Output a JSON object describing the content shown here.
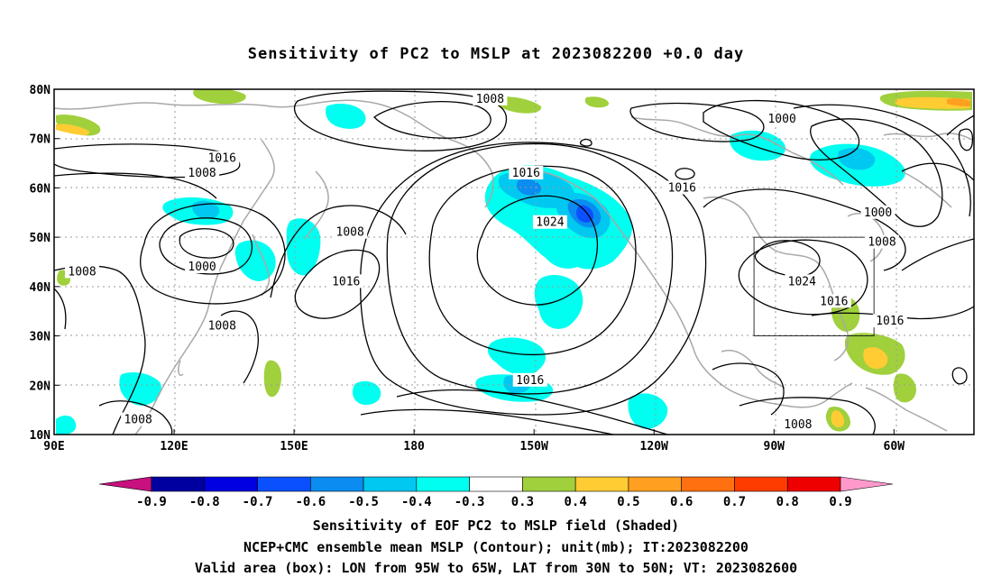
{
  "title": "Sensitivity of PC2 to MSLP at 2023082200 +0.0 day",
  "lat_labels": [
    "80N",
    "70N",
    "60N",
    "50N",
    "40N",
    "30N",
    "20N",
    "10N"
  ],
  "lon_labels": [
    "90E",
    "120E",
    "150E",
    "180",
    "150W",
    "120W",
    "90W",
    "60W"
  ],
  "contour_labels": [
    {
      "text": "1008",
      "lon": -161,
      "lat": 78
    },
    {
      "text": "1016",
      "lon": 132,
      "lat": 66
    },
    {
      "text": "1008",
      "lon": 127,
      "lat": 63
    },
    {
      "text": "1016",
      "lon": -152,
      "lat": 63
    },
    {
      "text": "1024",
      "lon": -146,
      "lat": 53
    },
    {
      "text": "1016",
      "lon": -113,
      "lat": 60
    },
    {
      "text": "1000",
      "lon": -88,
      "lat": 74
    },
    {
      "text": "1000",
      "lon": -64,
      "lat": 55
    },
    {
      "text": "1008",
      "lon": -63,
      "lat": 49
    },
    {
      "text": "1008",
      "lon": 164,
      "lat": 51
    },
    {
      "text": "1000",
      "lon": 127,
      "lat": 44
    },
    {
      "text": "1008",
      "lon": 97,
      "lat": 43
    },
    {
      "text": "1016",
      "lon": 163,
      "lat": 41
    },
    {
      "text": "1024",
      "lon": -83,
      "lat": 41
    },
    {
      "text": "1016",
      "lon": -75,
      "lat": 37
    },
    {
      "text": "1016",
      "lon": -61,
      "lat": 33
    },
    {
      "text": "1008",
      "lon": 132,
      "lat": 32
    },
    {
      "text": "1016",
      "lon": -151,
      "lat": 21
    },
    {
      "text": "1008",
      "lon": 111,
      "lat": 13
    },
    {
      "text": "1008",
      "lon": -84,
      "lat": 12
    }
  ],
  "valid_box": {
    "lon_min": -95,
    "lon_max": -65,
    "lat_min": 30,
    "lat_max": 50
  },
  "colorbar": {
    "labels": [
      "-0.9",
      "-0.8",
      "-0.7",
      "-0.6",
      "-0.5",
      "-0.4",
      "-0.3",
      "0.3",
      "0.4",
      "0.5",
      "0.6",
      "0.7",
      "0.8",
      "0.9"
    ],
    "colors": [
      "#c8107f",
      "#0000a0",
      "#0000e0",
      "#0a50ff",
      "#0a8cf0",
      "#00c8f0",
      "#00fff0",
      "#ffffff",
      "#a0d03c",
      "#ffcc33",
      "#ffa020",
      "#ff7010",
      "#ff3c00",
      "#ee0000",
      "#ff99cc"
    ]
  },
  "captions": [
    "Sensitivity of EOF PC2 to MSLP field (Shaded)",
    "NCEP+CMC ensemble mean MSLP (Contour); unit(mb); IT:2023082200",
    "Valid area (box): LON from 95W to 65W, LAT from 30N to 50N; VT: 2023082600"
  ],
  "colors": {
    "coast": "#a8a8a8",
    "contour": "#000000",
    "grid": "#9a9a9a"
  }
}
